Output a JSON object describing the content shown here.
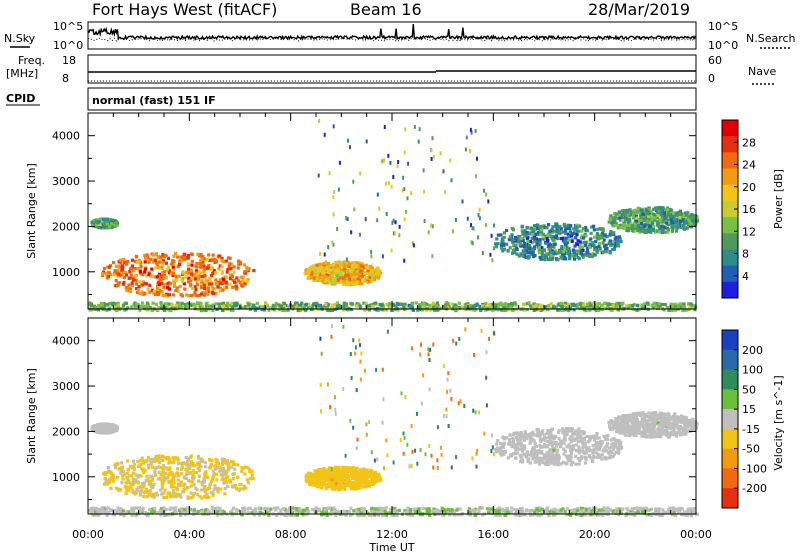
{
  "header": {
    "station": "Fort Hays West (fitACF)",
    "beam": "Beam 16",
    "date": "28/Mar/2019"
  },
  "top_panels": {
    "nsky_label": "N.Sky",
    "nsearch_label": "N.Search",
    "freq_label_1": "Freq.",
    "freq_label_2": "[MHz]",
    "nave_label": "Nave",
    "cpid_label": "CPID",
    "noise_left_ticks": [
      "10^5",
      "10^0"
    ],
    "noise_right_ticks": [
      "10^5",
      "10^0"
    ],
    "freq_ticks": [
      "18",
      "8"
    ],
    "nave_ticks": [
      "60",
      "0"
    ],
    "cpid_text": "normal (fast) 151 IF"
  },
  "axes": {
    "ylabel_power": "Slant Range [km]",
    "ylabel_velocity": "Slant Range [km]",
    "xlabel": "Time UT",
    "y_ticks": [
      "4000",
      "3000",
      "2000",
      "1000"
    ],
    "x_ticks": [
      "00:00",
      "04:00",
      "08:00",
      "12:00",
      "16:00",
      "20:00",
      "00:00"
    ]
  },
  "colorbars": {
    "power": {
      "label": "Power [dB]",
      "ticks": [
        "28",
        "24",
        "20",
        "16",
        "12",
        "8",
        "4"
      ],
      "colors": [
        "#1e1ee0",
        "#1f5fb4",
        "#2e8c8c",
        "#4f9a5a",
        "#7ac143",
        "#c8cc32",
        "#f2c418",
        "#f29a10",
        "#f26a10",
        "#e83010",
        "#e00000"
      ]
    },
    "velocity": {
      "label": "Velocity [m s^-1]",
      "ticks": [
        "200",
        "100",
        "50",
        "15",
        "-15",
        "-50",
        "-100",
        "-200"
      ],
      "colors": [
        "#1a3fbf",
        "#2a6aa8",
        "#2e8c5a",
        "#6cbf3a",
        "#bfbfbf",
        "#f2c418",
        "#f29a10",
        "#f26a10",
        "#e83010"
      ]
    }
  },
  "chart_data": [
    {
      "type": "heatmap",
      "title": "Power",
      "ylabel": "Slant Range [km]",
      "ylim": [
        180,
        4500
      ],
      "xlim": [
        0,
        24
      ],
      "clim": [
        0,
        32
      ],
      "unit": "dB",
      "regions": [
        {
          "t": [
            0.5,
            6.5
          ],
          "r": [
            500,
            1450
          ],
          "value": 24
        },
        {
          "t": [
            8.5,
            11.5
          ],
          "r": [
            750,
            1250
          ],
          "value": 20
        },
        {
          "t": [
            0.1,
            1.1
          ],
          "r": [
            2000,
            2200
          ],
          "value": 10
        },
        {
          "t": [
            16,
            21
          ],
          "r": [
            1300,
            2100
          ],
          "value": 8
        },
        {
          "t": [
            20.5,
            24
          ],
          "r": [
            1900,
            2450
          ],
          "value": 10
        },
        {
          "t": [
            0,
            24
          ],
          "r": [
            180,
            350
          ],
          "value": 12
        }
      ]
    },
    {
      "type": "heatmap",
      "title": "Velocity",
      "ylabel": "Slant Range [km]",
      "ylim": [
        180,
        4500
      ],
      "xlim": [
        0,
        24
      ],
      "clim": [
        -250,
        250
      ],
      "unit": "m s^-1",
      "regions": [
        {
          "t": [
            0.5,
            6.5
          ],
          "r": [
            550,
            1500
          ],
          "value": -40
        },
        {
          "t": [
            8.5,
            11.5
          ],
          "r": [
            750,
            1250
          ],
          "value": -60
        },
        {
          "t": [
            0.1,
            1.1
          ],
          "r": [
            2000,
            2200
          ],
          "value": 0
        },
        {
          "t": [
            16,
            21
          ],
          "r": [
            1300,
            2100
          ],
          "value": 0
        },
        {
          "t": [
            20.5,
            24
          ],
          "r": [
            1900,
            2450
          ],
          "value": 0
        },
        {
          "t": [
            0,
            24
          ],
          "r": [
            180,
            350
          ],
          "value": 20
        }
      ]
    }
  ]
}
